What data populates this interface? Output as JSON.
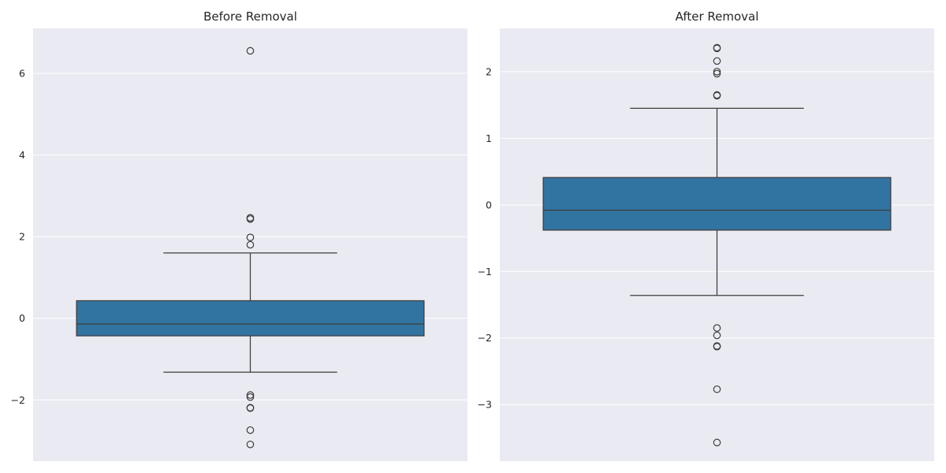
{
  "chart_data": [
    {
      "type": "box",
      "title": "Before Removal",
      "xlabel": "",
      "ylabel": "",
      "ylim": [
        -3.5,
        7.1
      ],
      "yticks": [
        -2,
        0,
        2,
        4,
        6
      ],
      "ytick_labels": [
        "−2",
        "0",
        "2",
        "4",
        "6"
      ],
      "grid": true,
      "box": {
        "q1": -0.43,
        "median": -0.14,
        "q3": 0.43,
        "whisker_low": -1.32,
        "whisker_high": 1.6,
        "color": "#3274a1"
      },
      "outliers": [
        6.55,
        2.46,
        2.43,
        1.98,
        1.8,
        -1.88,
        -1.93,
        -2.19,
        -2.2,
        -2.74,
        -3.09
      ]
    },
    {
      "type": "box",
      "title": "After Removal",
      "xlabel": "",
      "ylabel": "",
      "ylim": [
        -3.85,
        2.65
      ],
      "yticks": [
        -3,
        -2,
        -1,
        0,
        1,
        2
      ],
      "ytick_labels": [
        "−3",
        "−2",
        "−1",
        "0",
        "1",
        "2"
      ],
      "grid": true,
      "box": {
        "q1": -0.38,
        "median": -0.08,
        "q3": 0.41,
        "whisker_low": -1.36,
        "whisker_high": 1.45,
        "color": "#3274a1"
      },
      "outliers": [
        2.36,
        2.35,
        2.16,
        2.0,
        1.97,
        1.65,
        1.64,
        -1.85,
        -1.96,
        -2.12,
        -2.13,
        -2.77,
        -3.57
      ]
    }
  ],
  "colors": {
    "panel_bg": "#eaeaf2",
    "grid": "#ffffff",
    "box_fill": "#3274a1",
    "line": "#3d3d3d"
  }
}
